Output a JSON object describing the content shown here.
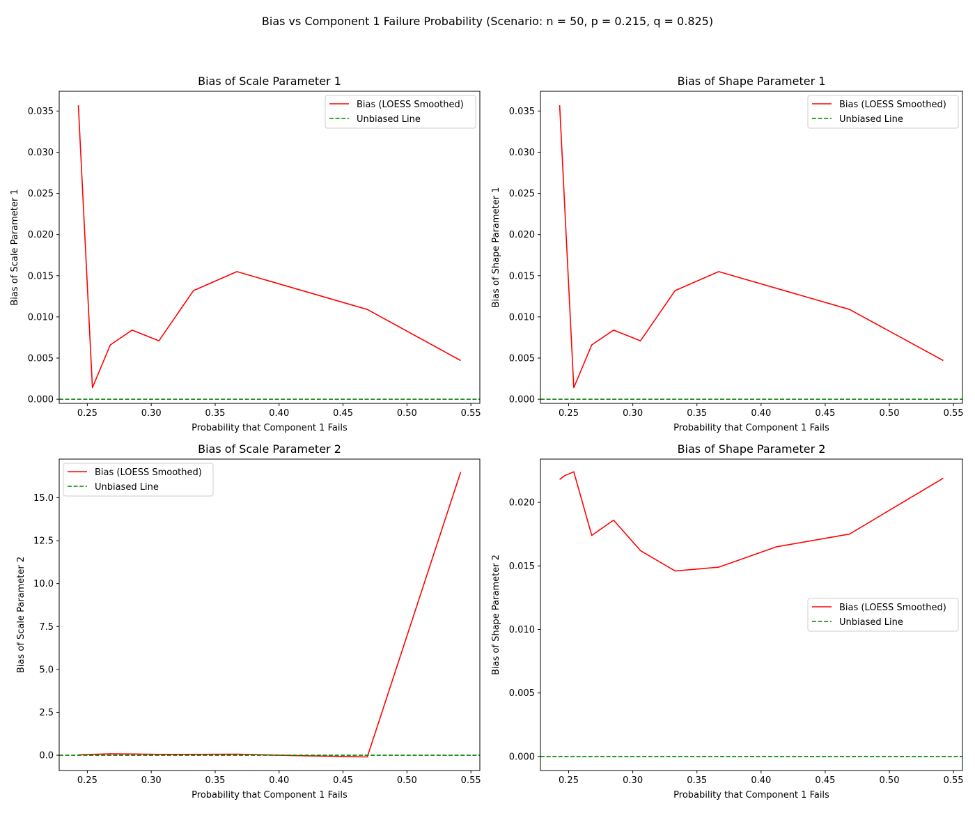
{
  "figure": {
    "title": "Bias vs Component 1 Failure Probability (Scenario: n = 50, p = 0.215, q = 0.825)"
  },
  "colors": {
    "bias_line": "#ff0000",
    "unbiased_line": "#008000",
    "axes": "#000000",
    "legend_border": "#cccccc"
  },
  "chart_data": [
    {
      "type": "line",
      "title": "Bias of Scale Parameter 1",
      "xlabel": "Probability that Component 1 Fails",
      "ylabel": "Bias of Scale Parameter 1",
      "xlim": [
        0.228,
        0.557
      ],
      "ylim": [
        -0.0005,
        0.0374
      ],
      "xticks": [
        0.25,
        0.3,
        0.35,
        0.4,
        0.45,
        0.5,
        0.55
      ],
      "xtick_labels": [
        "0.25",
        "0.30",
        "0.35",
        "0.40",
        "0.45",
        "0.50",
        "0.55"
      ],
      "yticks": [
        0.0,
        0.005,
        0.01,
        0.015,
        0.02,
        0.025,
        0.03,
        0.035
      ],
      "ytick_labels": [
        "0.000",
        "0.005",
        "0.010",
        "0.015",
        "0.020",
        "0.025",
        "0.030",
        "0.035"
      ],
      "grid": false,
      "legend_position": "upper right",
      "series": [
        {
          "name": "Bias (LOESS Smoothed)",
          "style": "solid",
          "color": "#ff0000",
          "x": [
            0.243,
            0.254,
            0.268,
            0.285,
            0.306,
            0.333,
            0.367,
            0.469,
            0.542
          ],
          "y": [
            0.0357,
            0.0014,
            0.0066,
            0.0084,
            0.0071,
            0.0132,
            0.0155,
            0.0109,
            0.0047
          ]
        },
        {
          "name": "Unbiased Line",
          "style": "dashed",
          "color": "#008000",
          "hline": 0
        }
      ]
    },
    {
      "type": "line",
      "title": "Bias of Shape Parameter 1",
      "xlabel": "Probability that Component 1 Fails",
      "ylabel": "Bias of Shape Parameter 1",
      "xlim": [
        0.228,
        0.557
      ],
      "ylim": [
        -0.0005,
        0.0374
      ],
      "xticks": [
        0.25,
        0.3,
        0.35,
        0.4,
        0.45,
        0.5,
        0.55
      ],
      "xtick_labels": [
        "0.25",
        "0.30",
        "0.35",
        "0.40",
        "0.45",
        "0.50",
        "0.55"
      ],
      "yticks": [
        0.0,
        0.005,
        0.01,
        0.015,
        0.02,
        0.025,
        0.03,
        0.035
      ],
      "ytick_labels": [
        "0.000",
        "0.005",
        "0.010",
        "0.015",
        "0.020",
        "0.025",
        "0.030",
        "0.035"
      ],
      "grid": false,
      "legend_position": "upper right",
      "series": [
        {
          "name": "Bias (LOESS Smoothed)",
          "style": "solid",
          "color": "#ff0000",
          "x": [
            0.243,
            0.254,
            0.268,
            0.285,
            0.306,
            0.333,
            0.367,
            0.469,
            0.542
          ],
          "y": [
            0.0357,
            0.0014,
            0.0066,
            0.0084,
            0.0071,
            0.0132,
            0.0155,
            0.0109,
            0.0047
          ]
        },
        {
          "name": "Unbiased Line",
          "style": "dashed",
          "color": "#008000",
          "hline": 0
        }
      ]
    },
    {
      "type": "line",
      "title": "Bias of Scale Parameter 2",
      "xlabel": "Probability that Component 1 Fails",
      "ylabel": "Bias of Scale Parameter 2",
      "xlim": [
        0.228,
        0.557
      ],
      "ylim": [
        -0.89,
        17.25
      ],
      "xticks": [
        0.25,
        0.3,
        0.35,
        0.4,
        0.45,
        0.5,
        0.55
      ],
      "xtick_labels": [
        "0.25",
        "0.30",
        "0.35",
        "0.40",
        "0.45",
        "0.50",
        "0.55"
      ],
      "yticks": [
        0.0,
        2.5,
        5.0,
        7.5,
        10.0,
        12.5,
        15.0
      ],
      "ytick_labels": [
        "0.0",
        "2.5",
        "5.0",
        "7.5",
        "10.0",
        "12.5",
        "15.0"
      ],
      "grid": false,
      "legend_position": "upper left",
      "series": [
        {
          "name": "Bias (LOESS Smoothed)",
          "style": "solid",
          "color": "#ff0000",
          "x": [
            0.243,
            0.254,
            0.268,
            0.285,
            0.306,
            0.333,
            0.367,
            0.412,
            0.469,
            0.542
          ],
          "y": [
            0.02,
            0.05,
            0.08,
            0.07,
            0.05,
            0.05,
            0.06,
            -0.02,
            -0.1,
            16.5
          ]
        },
        {
          "name": "Unbiased Line",
          "style": "dashed",
          "color": "#008000",
          "hline": 0
        }
      ]
    },
    {
      "type": "line",
      "title": "Bias of Shape Parameter 2",
      "xlabel": "Probability that Component 1 Fails",
      "ylabel": "Bias of Shape Parameter 2",
      "xlim": [
        0.228,
        0.557
      ],
      "ylim": [
        -0.0011,
        0.0234
      ],
      "xticks": [
        0.25,
        0.3,
        0.35,
        0.4,
        0.45,
        0.5,
        0.55
      ],
      "xtick_labels": [
        "0.25",
        "0.30",
        "0.35",
        "0.40",
        "0.45",
        "0.50",
        "0.55"
      ],
      "yticks": [
        0.0,
        0.005,
        0.01,
        0.015,
        0.02
      ],
      "ytick_labels": [
        "0.000",
        "0.005",
        "0.010",
        "0.015",
        "0.020"
      ],
      "grid": false,
      "legend_position": "center right",
      "series": [
        {
          "name": "Bias (LOESS Smoothed)",
          "style": "solid",
          "color": "#ff0000",
          "x": [
            0.243,
            0.247,
            0.254,
            0.268,
            0.285,
            0.306,
            0.333,
            0.367,
            0.412,
            0.469,
            0.542
          ],
          "y": [
            0.0218,
            0.0221,
            0.0224,
            0.0174,
            0.0186,
            0.0162,
            0.0146,
            0.0149,
            0.0165,
            0.0175,
            0.0219
          ]
        },
        {
          "name": "Unbiased Line",
          "style": "dashed",
          "color": "#008000",
          "hline": 0
        }
      ]
    }
  ]
}
